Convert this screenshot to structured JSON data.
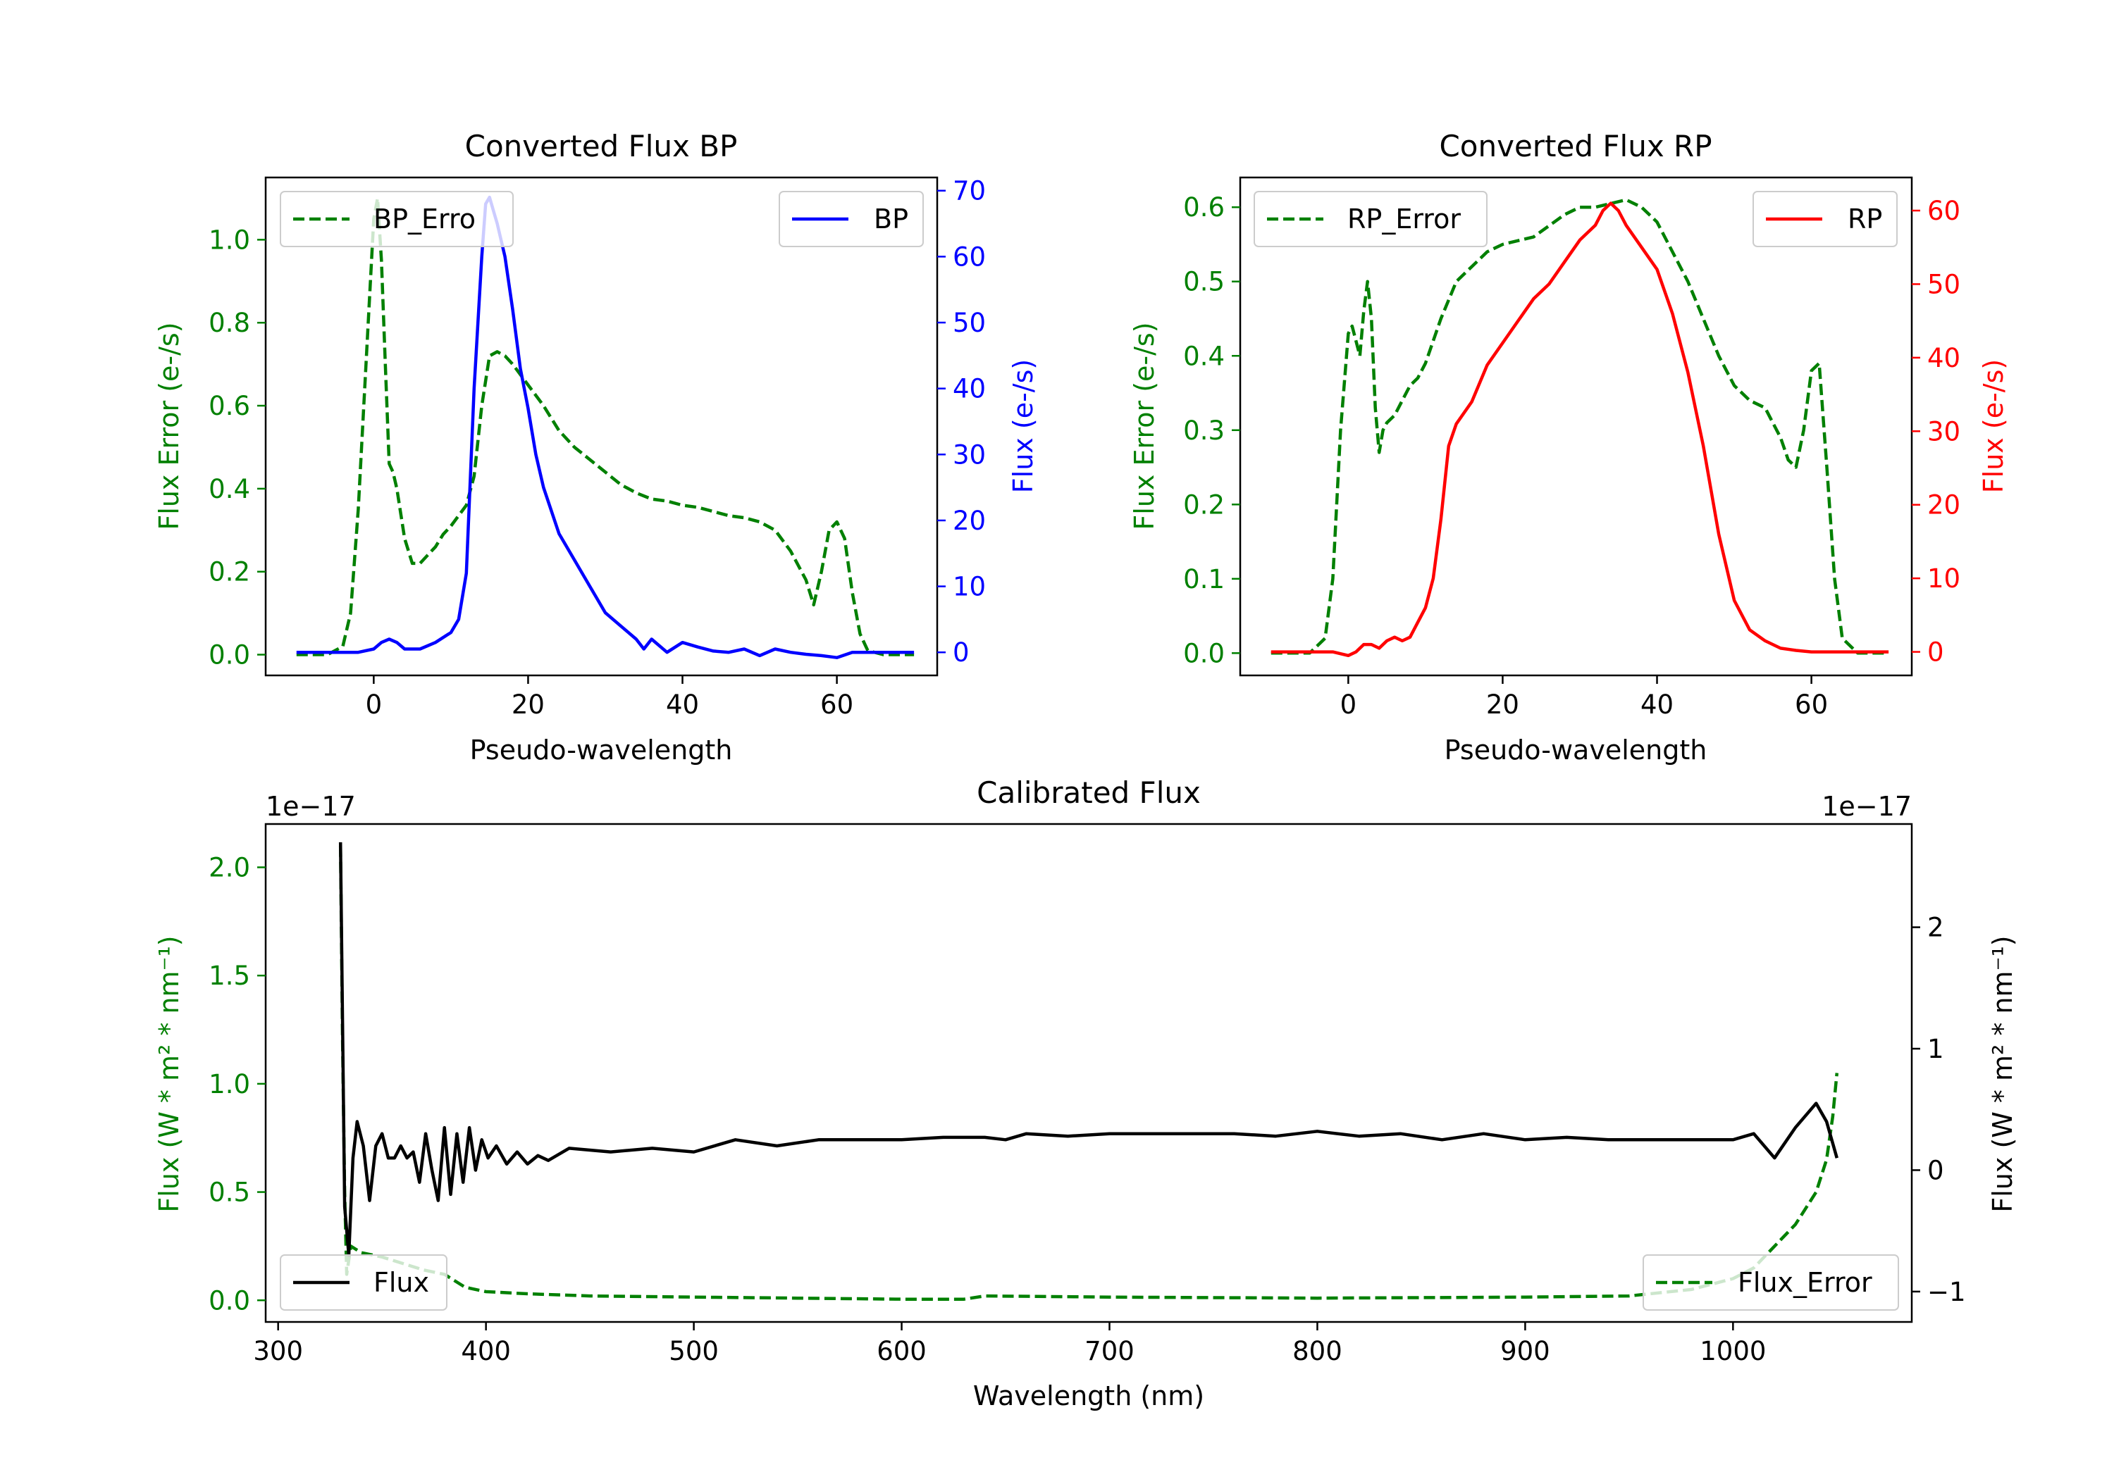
{
  "chart_data": [
    {
      "type": "line",
      "title": "Converted Flux BP",
      "xlabel": "Pseudo-wavelength",
      "ylabel_left": "Flux Error (e-/s)",
      "ylabel_right": "Flux (e-/s)",
      "xlim": [
        -14,
        73
      ],
      "ylim_left": [
        -0.05,
        1.15
      ],
      "ylim_right": [
        -3.5,
        72
      ],
      "xticks": [
        "0",
        "20",
        "40",
        "60"
      ],
      "yticks_left": [
        "0.0",
        "0.2",
        "0.4",
        "0.6",
        "0.8",
        "1.0"
      ],
      "yticks_right": [
        "0",
        "10",
        "20",
        "30",
        "40",
        "50",
        "60",
        "70"
      ],
      "legend_left": {
        "label": "BP_Erro",
        "position": "top-left"
      },
      "legend_right": {
        "label": "BP",
        "position": "top-right"
      },
      "series": [
        {
          "name": "BP_Error",
          "axis": "left",
          "color": "#008000",
          "dash": true,
          "x": [
            -10,
            -6,
            -4,
            -3,
            -2,
            -1,
            0,
            0.5,
            1,
            1.5,
            2,
            2.5,
            3,
            4,
            5,
            6,
            7,
            8,
            9,
            10,
            12,
            13,
            14,
            15,
            16,
            17,
            18,
            20,
            22,
            24,
            26,
            28,
            30,
            32,
            34,
            36,
            38,
            40,
            42,
            44,
            46,
            48,
            50,
            52,
            54,
            56,
            57,
            58,
            59,
            60,
            61,
            62,
            63,
            64,
            66,
            70
          ],
          "y": [
            0,
            0,
            0.02,
            0.1,
            0.35,
            0.7,
            1.05,
            1.1,
            0.95,
            0.7,
            0.46,
            0.44,
            0.4,
            0.28,
            0.22,
            0.22,
            0.24,
            0.26,
            0.29,
            0.31,
            0.36,
            0.43,
            0.6,
            0.72,
            0.73,
            0.72,
            0.7,
            0.65,
            0.6,
            0.54,
            0.5,
            0.47,
            0.44,
            0.41,
            0.39,
            0.375,
            0.37,
            0.36,
            0.355,
            0.345,
            0.335,
            0.33,
            0.32,
            0.3,
            0.25,
            0.18,
            0.12,
            0.2,
            0.3,
            0.32,
            0.28,
            0.15,
            0.05,
            0.01,
            0,
            0
          ]
        },
        {
          "name": "BP",
          "axis": "right",
          "color": "#0000ff",
          "dash": false,
          "x": [
            -10,
            -4,
            -2,
            0,
            1,
            2,
            3,
            4,
            6,
            8,
            10,
            11,
            12,
            13,
            14,
            14.5,
            15,
            15.5,
            16,
            17,
            18,
            19,
            20,
            21,
            22,
            24,
            26,
            28,
            30,
            32,
            34,
            35,
            36,
            38,
            40,
            42,
            44,
            46,
            48,
            50,
            52,
            54,
            56,
            58,
            60,
            62,
            66,
            70
          ],
          "y": [
            0,
            0,
            0,
            0.5,
            1.5,
            2,
            1.5,
            0.5,
            0.5,
            1.5,
            3,
            5,
            12,
            40,
            60,
            68,
            69,
            67,
            65,
            60,
            52,
            43,
            37,
            30,
            25,
            18,
            14,
            10,
            6,
            4,
            2,
            0.5,
            2,
            0,
            1.5,
            0.8,
            0.2,
            0,
            0.5,
            -0.5,
            0.5,
            0,
            -0.3,
            -0.5,
            -0.8,
            0,
            0,
            0
          ]
        }
      ]
    },
    {
      "type": "line",
      "title": "Converted Flux RP",
      "xlabel": "Pseudo-wavelength",
      "ylabel_left": "Flux Error (e-/s)",
      "ylabel_right": "Flux (e-/s)",
      "xlim": [
        -14,
        73
      ],
      "ylim_left": [
        -0.03,
        0.64
      ],
      "ylim_right": [
        -3.2,
        64.5
      ],
      "xticks": [
        "0",
        "20",
        "40",
        "60"
      ],
      "yticks_left": [
        "0.0",
        "0.1",
        "0.2",
        "0.3",
        "0.4",
        "0.5",
        "0.6"
      ],
      "yticks_right": [
        "0",
        "10",
        "20",
        "30",
        "40",
        "50",
        "60"
      ],
      "legend_left": {
        "label": "RP_Error",
        "position": "top-left"
      },
      "legend_right": {
        "label": "RP",
        "position": "top-right"
      },
      "series": [
        {
          "name": "RP_Error",
          "axis": "left",
          "color": "#008000",
          "dash": true,
          "x": [
            -10,
            -5,
            -3,
            -2,
            -1,
            0,
            0.5,
            1,
            1.5,
            2,
            2.5,
            3,
            3.5,
            4,
            4.5,
            5,
            6,
            7,
            8,
            9,
            10,
            12,
            14,
            16,
            18,
            20,
            22,
            24,
            26,
            28,
            30,
            32,
            34,
            36,
            38,
            40,
            42,
            44,
            46,
            48,
            50,
            52,
            54,
            55,
            56,
            57,
            58,
            59,
            60,
            61,
            62,
            63,
            64,
            66,
            70
          ],
          "y": [
            0,
            0,
            0.02,
            0.1,
            0.3,
            0.43,
            0.44,
            0.42,
            0.4,
            0.46,
            0.5,
            0.45,
            0.33,
            0.27,
            0.3,
            0.31,
            0.32,
            0.34,
            0.36,
            0.37,
            0.39,
            0.45,
            0.5,
            0.52,
            0.54,
            0.55,
            0.555,
            0.56,
            0.575,
            0.59,
            0.6,
            0.6,
            0.605,
            0.61,
            0.6,
            0.58,
            0.54,
            0.5,
            0.45,
            0.4,
            0.36,
            0.34,
            0.33,
            0.31,
            0.29,
            0.26,
            0.25,
            0.3,
            0.38,
            0.39,
            0.25,
            0.1,
            0.02,
            0,
            0
          ]
        },
        {
          "name": "RP",
          "axis": "right",
          "color": "#ff0000",
          "dash": false,
          "x": [
            -10,
            -5,
            -2,
            0,
            1,
            2,
            3,
            4,
            5,
            6,
            7,
            8,
            9,
            10,
            11,
            12,
            13,
            14,
            16,
            18,
            20,
            22,
            24,
            26,
            28,
            30,
            32,
            33,
            34,
            35,
            36,
            38,
            40,
            42,
            44,
            46,
            48,
            50,
            52,
            54,
            56,
            58,
            60,
            62,
            66,
            70
          ],
          "y": [
            0,
            0,
            0,
            -0.5,
            0,
            1,
            1,
            0.5,
            1.5,
            2,
            1.5,
            2,
            4,
            6,
            10,
            18,
            28,
            31,
            34,
            39,
            42,
            45,
            48,
            50,
            53,
            56,
            58,
            60,
            61,
            60,
            58,
            55,
            52,
            46,
            38,
            28,
            16,
            7,
            3,
            1.5,
            0.5,
            0.2,
            0,
            0,
            0,
            0
          ]
        }
      ]
    },
    {
      "type": "line",
      "title": "Calibrated Flux",
      "xlabel": "Wavelength (nm)",
      "ylabel_left": "Flux (W * m² * nm⁻¹)",
      "ylabel_right": "Flux (W * m² * nm⁻¹)",
      "offset_left": "1e−17",
      "offset_right": "1e−17",
      "xlim": [
        294,
        1086
      ],
      "ylim_left": [
        -0.1,
        2.2
      ],
      "ylim_right": [
        -1.25,
        2.85
      ],
      "xticks": [
        "300",
        "400",
        "500",
        "600",
        "700",
        "800",
        "900",
        "1000"
      ],
      "yticks_left": [
        "0.0",
        "0.5",
        "1.0",
        "1.5",
        "2.0"
      ],
      "yticks_right": [
        "−1",
        "0",
        "1",
        "2"
      ],
      "legend_left": {
        "label": "Flux",
        "position": "lower-left"
      },
      "legend_right": {
        "label": "Flux_Error",
        "position": "lower-right"
      },
      "series": [
        {
          "name": "Flux_Error",
          "axis": "left",
          "color": "#008000",
          "dash": true,
          "x": [
            330,
            331,
            332,
            333,
            335,
            340,
            350,
            360,
            370,
            380,
            390,
            400,
            420,
            450,
            500,
            550,
            600,
            630,
            640,
            700,
            800,
            900,
            950,
            980,
            1000,
            1010,
            1020,
            1030,
            1040,
            1045,
            1048,
            1050
          ],
          "y": [
            2.1,
            1.2,
            0.5,
            0.12,
            0.25,
            0.22,
            0.2,
            0.17,
            0.14,
            0.12,
            0.06,
            0.04,
            0.03,
            0.02,
            0.015,
            0.01,
            0.005,
            0.005,
            0.02,
            0.015,
            0.01,
            0.015,
            0.02,
            0.05,
            0.1,
            0.15,
            0.25,
            0.35,
            0.5,
            0.65,
            0.85,
            1.05
          ]
        },
        {
          "name": "Flux",
          "axis": "right",
          "color": "#000000",
          "dash": false,
          "x": [
            330,
            332,
            334,
            336,
            338,
            341,
            344,
            347,
            350,
            353,
            356,
            359,
            362,
            365,
            368,
            371,
            374,
            377,
            380,
            383,
            386,
            389,
            392,
            395,
            398,
            401,
            405,
            410,
            415,
            420,
            425,
            430,
            440,
            460,
            480,
            500,
            520,
            540,
            560,
            580,
            600,
            620,
            640,
            650,
            660,
            680,
            700,
            720,
            740,
            760,
            780,
            800,
            820,
            840,
            860,
            880,
            900,
            920,
            940,
            960,
            980,
            1000,
            1010,
            1020,
            1030,
            1040,
            1045,
            1050
          ],
          "y": [
            2.7,
            -0.3,
            -0.7,
            0.1,
            0.4,
            0.2,
            -0.25,
            0.2,
            0.3,
            0.1,
            0.1,
            0.2,
            0.1,
            0.15,
            -0.1,
            0.3,
            0.0,
            -0.25,
            0.35,
            -0.2,
            0.3,
            -0.1,
            0.35,
            0.0,
            0.25,
            0.1,
            0.2,
            0.05,
            0.15,
            0.05,
            0.12,
            0.08,
            0.18,
            0.15,
            0.18,
            0.15,
            0.25,
            0.2,
            0.25,
            0.25,
            0.25,
            0.27,
            0.27,
            0.25,
            0.3,
            0.28,
            0.3,
            0.3,
            0.3,
            0.3,
            0.28,
            0.32,
            0.28,
            0.3,
            0.25,
            0.3,
            0.25,
            0.27,
            0.25,
            0.25,
            0.25,
            0.25,
            0.3,
            0.1,
            0.35,
            0.55,
            0.4,
            0.1
          ]
        }
      ]
    }
  ]
}
